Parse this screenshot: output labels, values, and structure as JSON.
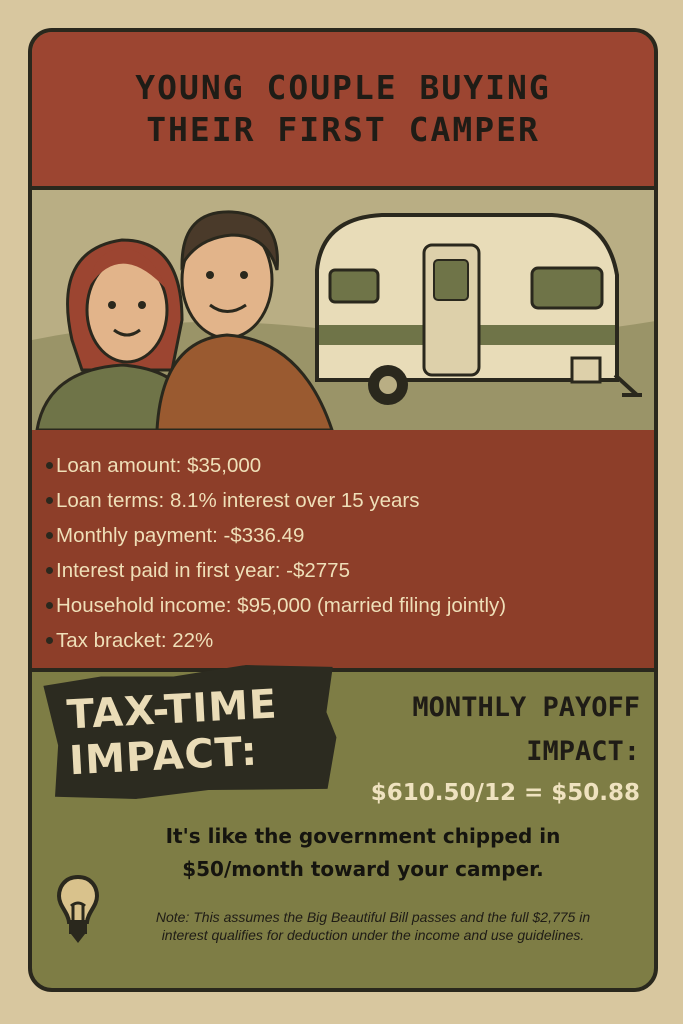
{
  "title": {
    "line1": "YOUNG COUPLE BUYING",
    "line2": "THEIR FIRST CAMPER"
  },
  "facts": [
    "Loan amount: $35,000",
    "Loan terms: 8.1% interest over 15 years",
    "Monthly payment: -$336.49",
    "Interest paid in first year: -$2775",
    "Household income: $95,000 (married filing jointly)",
    "Tax bracket: 22%"
  ],
  "badge": {
    "line1": "TAX-TIME",
    "line2": "IMPACT:"
  },
  "payoff": {
    "line1": "MONTHLY PAYOFF",
    "line2": "IMPACT:",
    "calc": "$610.50/12 = $50.88"
  },
  "message": {
    "line1": "It's like the government chipped in",
    "line2": "$50/month toward your camper."
  },
  "note": "Note: This assumes the Big Beautiful Bill passes and the full $2,775 in interest qualifies for deduction under the income and use guidelines.",
  "icons": [
    "lightbulb-icon"
  ],
  "colors": {
    "red": "#9c4531",
    "green": "#7e7d45",
    "cream": "#efdfb8",
    "dark": "#2a281d"
  }
}
